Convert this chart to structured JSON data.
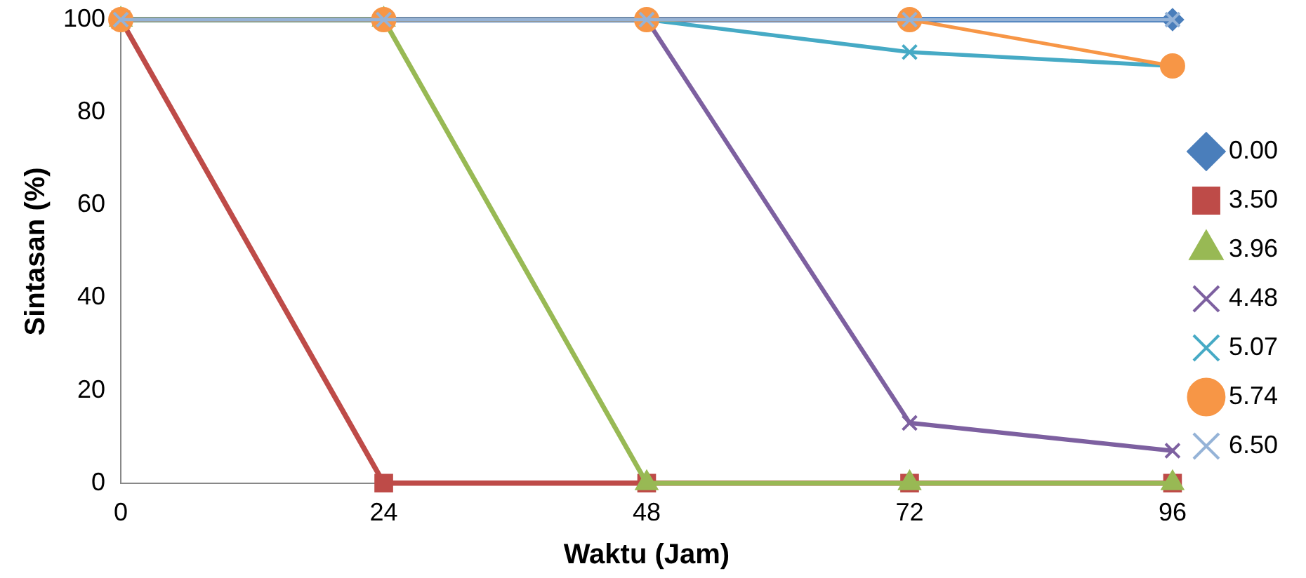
{
  "chart_data": {
    "type": "line",
    "xlabel": "Waktu (Jam)",
    "ylabel": "Sintasan (%)",
    "x": [
      0,
      24,
      48,
      72,
      96
    ],
    "xlim": [
      0,
      96
    ],
    "xticks": [
      0,
      24,
      48,
      72,
      96
    ],
    "ylim": [
      0,
      100
    ],
    "yticks": [
      0,
      20,
      40,
      60,
      80,
      100
    ],
    "grid": false,
    "legend": "right",
    "line_style": "solid",
    "series": [
      {
        "name": "0.00",
        "color": "#4a7ebb",
        "marker": "diamond",
        "values": [
          100,
          100,
          100,
          100,
          100
        ]
      },
      {
        "name": "3.50",
        "color": "#be4b48",
        "marker": "square",
        "values": [
          100,
          0,
          0,
          0,
          0
        ]
      },
      {
        "name": "3.96",
        "color": "#98b954",
        "marker": "triangle",
        "values": [
          100,
          100,
          0,
          0,
          0
        ]
      },
      {
        "name": "4.48",
        "color": "#7d60a0",
        "marker": "cross",
        "values": [
          100,
          100,
          100,
          13,
          7
        ]
      },
      {
        "name": "5.07",
        "color": "#46aac5",
        "marker": "cross",
        "values": [
          100,
          100,
          100,
          93,
          90
        ]
      },
      {
        "name": "5.74",
        "color": "#f79646",
        "marker": "circle",
        "values": [
          100,
          100,
          100,
          100,
          90
        ]
      },
      {
        "name": "6.50",
        "color": "#95b3d7",
        "marker": "cross",
        "values": [
          100,
          100,
          100,
          100,
          100
        ]
      }
    ]
  }
}
